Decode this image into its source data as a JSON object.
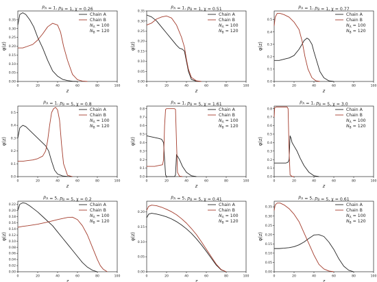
{
  "figure": {
    "background": "#ffffff"
  },
  "chart_data": [
    {
      "type": "line",
      "title": "p_A = 1,   p_B = 1,   χ = 0.26",
      "xlabel": "z",
      "ylabel": "φ(z)",
      "xlim": [
        0,
        100
      ],
      "ylim": [
        0,
        0.4
      ],
      "xticks": [
        0,
        20,
        40,
        60,
        80,
        100
      ],
      "yticks": [
        0.0,
        0.05,
        0.1,
        0.15,
        0.2,
        0.25,
        0.3,
        0.35
      ],
      "ytick_labels": [
        "0.00",
        "0.05",
        "0.10",
        "0.15",
        "0.20",
        "0.25",
        "0.30",
        "0.35"
      ],
      "legend": {
        "placement": "top-right",
        "extra": [
          "N_A = 100",
          "N_B = 120"
        ]
      },
      "series": [
        {
          "name": "Chain A",
          "color": "#222222",
          "x": [
            0,
            2,
            5,
            8,
            12,
            16,
            20,
            25,
            30,
            35,
            40,
            45,
            50,
            55,
            60
          ],
          "y": [
            0.32,
            0.38,
            0.39,
            0.38,
            0.35,
            0.31,
            0.25,
            0.19,
            0.12,
            0.06,
            0.03,
            0.012,
            0.005,
            0.001,
            0
          ]
        },
        {
          "name": "Chain B",
          "color": "#a33a2a",
          "x": [
            0,
            5,
            10,
            15,
            20,
            25,
            30,
            35,
            40,
            43,
            46,
            50,
            55,
            60,
            65,
            70
          ],
          "y": [
            0.19,
            0.19,
            0.2,
            0.21,
            0.235,
            0.27,
            0.31,
            0.33,
            0.32,
            0.28,
            0.2,
            0.12,
            0.04,
            0.01,
            0.002,
            0
          ]
        }
      ]
    },
    {
      "type": "line",
      "title": "p_A = 1,   p_B = 1,   χ = 0.51",
      "xlabel": "z",
      "ylabel": "φ(z)",
      "xlim": [
        0,
        100
      ],
      "ylim": [
        0,
        0.35
      ],
      "xticks": [
        0,
        20,
        40,
        60,
        80,
        100
      ],
      "yticks": [
        0.0,
        0.05,
        0.1,
        0.15,
        0.2,
        0.25,
        0.3,
        0.35
      ],
      "ytick_labels": [
        "0.00",
        "0.05",
        "0.10",
        "0.15",
        "0.20",
        "0.25",
        "0.30",
        "0.35"
      ],
      "legend": {
        "placement": "top-right",
        "extra": [
          "N_A = 100",
          "N_B = 120"
        ]
      },
      "series": [
        {
          "name": "Chain A",
          "color": "#222222",
          "x": [
            0,
            5,
            10,
            15,
            20,
            25,
            30,
            33,
            36,
            38,
            40,
            42,
            45,
            50,
            55
          ],
          "y": [
            0.33,
            0.32,
            0.3,
            0.27,
            0.24,
            0.21,
            0.18,
            0.165,
            0.16,
            0.15,
            0.1,
            0.05,
            0.01,
            0.001,
            0
          ]
        },
        {
          "name": "Chain B",
          "color": "#a33a2a",
          "x": [
            0,
            5,
            10,
            15,
            20,
            25,
            30,
            35,
            38,
            40,
            42,
            45,
            50,
            55
          ],
          "y": [
            0.28,
            0.29,
            0.31,
            0.32,
            0.325,
            0.315,
            0.28,
            0.22,
            0.17,
            0.11,
            0.06,
            0.02,
            0.003,
            0
          ]
        }
      ]
    },
    {
      "type": "line",
      "title": "p_A = 1,   p_B = 1,   χ = 0.77",
      "xlabel": "z",
      "ylabel": "φ(z)",
      "xlim": [
        0,
        100
      ],
      "ylim": [
        0,
        0.57
      ],
      "xticks": [
        0,
        20,
        40,
        60,
        80,
        100
      ],
      "yticks": [
        0.0,
        0.1,
        0.2,
        0.3,
        0.4,
        0.5
      ],
      "ytick_labels": [
        "0.0",
        "0.1",
        "0.2",
        "0.3",
        "0.4",
        "0.5"
      ],
      "legend": {
        "placement": "top-right",
        "extra": [
          "N_A = 100",
          "N_B = 120"
        ]
      },
      "series": [
        {
          "name": "Chain A",
          "color": "#222222",
          "x": [
            0,
            5,
            10,
            15,
            20,
            25,
            28,
            30,
            33,
            35,
            38,
            40,
            43,
            46,
            50,
            55,
            60
          ],
          "y": [
            0.17,
            0.17,
            0.18,
            0.19,
            0.21,
            0.26,
            0.3,
            0.33,
            0.35,
            0.34,
            0.3,
            0.24,
            0.16,
            0.08,
            0.03,
            0.005,
            0
          ]
        },
        {
          "name": "Chain B",
          "color": "#a33a2a",
          "x": [
            0,
            1,
            3,
            6,
            10,
            15,
            20,
            25,
            28,
            31,
            34,
            38,
            42,
            46
          ],
          "y": [
            0.45,
            0.52,
            0.55,
            0.55,
            0.54,
            0.52,
            0.48,
            0.42,
            0.33,
            0.2,
            0.1,
            0.03,
            0.005,
            0
          ]
        }
      ]
    },
    {
      "type": "line",
      "title": "p_A = 1,   p_B = 5,   χ = 0.8",
      "xlabel": "z",
      "ylabel": "φ(z)",
      "xlim": [
        0,
        100
      ],
      "ylim": [
        0,
        0.55
      ],
      "xticks": [
        0,
        20,
        40,
        60,
        80,
        100
      ],
      "yticks": [
        0.0,
        0.1,
        0.2,
        0.3,
        0.4,
        0.5
      ],
      "ytick_labels": [
        "0.0",
        "0.1",
        "0.2",
        "0.3",
        "0.4",
        "0.5"
      ],
      "legend": {
        "placement": "top-right",
        "extra": [
          "N_A = 100",
          "N_B = 120"
        ]
      },
      "series": [
        {
          "name": "Chain A",
          "color": "#222222",
          "x": [
            0,
            2,
            5,
            8,
            12,
            16,
            20,
            24,
            28,
            31,
            34,
            37,
            40,
            45,
            50,
            55
          ],
          "y": [
            0.3,
            0.38,
            0.4,
            0.39,
            0.36,
            0.33,
            0.3,
            0.27,
            0.24,
            0.2,
            0.12,
            0.05,
            0.02,
            0.005,
            0.001,
            0
          ]
        },
        {
          "name": "Chain B",
          "color": "#a33a2a",
          "x": [
            0,
            5,
            10,
            15,
            20,
            25,
            28,
            30,
            32,
            34,
            36,
            38,
            40,
            42,
            44,
            46,
            50,
            55
          ],
          "y": [
            0.12,
            0.12,
            0.125,
            0.13,
            0.14,
            0.16,
            0.2,
            0.28,
            0.4,
            0.5,
            0.53,
            0.54,
            0.52,
            0.44,
            0.25,
            0.1,
            0.01,
            0
          ]
        }
      ]
    },
    {
      "type": "line",
      "title": "p_A = 1,   p_B = 5,   χ = 1.61",
      "xlabel": "z",
      "ylabel": "φ(z)",
      "xlim": [
        0,
        100
      ],
      "ylim": [
        0,
        0.83
      ],
      "xticks": [
        0,
        20,
        40,
        60,
        80,
        100
      ],
      "yticks": [
        0.0,
        0.1,
        0.2,
        0.3,
        0.4,
        0.5,
        0.6,
        0.7,
        0.8
      ],
      "ytick_labels": [
        "0.0",
        "0.1",
        "0.2",
        "0.3",
        "0.4",
        "0.5",
        "0.6",
        "0.7",
        "0.8"
      ],
      "legend": {
        "placement": "top-right",
        "extra": [
          "N_A = 100",
          "N_B = 120"
        ]
      },
      "series": [
        {
          "name": "Chain A",
          "color": "#222222",
          "x": [
            0,
            4,
            8,
            12,
            15,
            17,
            18,
            19,
            20,
            28,
            29,
            30,
            31,
            33,
            36,
            40,
            45,
            50
          ],
          "y": [
            0.48,
            0.47,
            0.46,
            0.45,
            0.44,
            0.4,
            0.2,
            0.02,
            0.0,
            0.0,
            0.02,
            0.26,
            0.24,
            0.2,
            0.12,
            0.05,
            0.01,
            0
          ]
        },
        {
          "name": "Chain B",
          "color": "#a33a2a",
          "x": [
            0,
            4,
            8,
            12,
            16,
            17,
            18,
            19,
            20,
            28,
            29,
            30,
            31,
            33,
            36
          ],
          "y": [
            0.12,
            0.12,
            0.12,
            0.13,
            0.14,
            0.2,
            0.6,
            0.79,
            0.8,
            0.8,
            0.79,
            0.4,
            0.05,
            0.005,
            0
          ]
        }
      ]
    },
    {
      "type": "line",
      "title": "p_A = 1,   p_B = 5,   χ = 3.0",
      "xlabel": "z",
      "ylabel": "φ(z)",
      "xlim": [
        0,
        100
      ],
      "ylim": [
        0,
        0.83
      ],
      "xticks": [
        0,
        20,
        40,
        60,
        80,
        100
      ],
      "yticks": [
        0.0,
        0.1,
        0.2,
        0.3,
        0.4,
        0.5,
        0.6,
        0.7,
        0.8
      ],
      "ytick_labels": [
        "0.0",
        "0.1",
        "0.2",
        "0.3",
        "0.4",
        "0.5",
        "0.6",
        "0.7",
        "0.8"
      ],
      "legend": {
        "placement": "top-right",
        "extra": [
          "N_A = 100",
          "N_B = 120"
        ]
      },
      "series": [
        {
          "name": "Chain A",
          "color": "#222222",
          "x": [
            0,
            4,
            8,
            12,
            14,
            15,
            16,
            17,
            18,
            20,
            23,
            26,
            30,
            35,
            40,
            45
          ],
          "y": [
            0.16,
            0.16,
            0.16,
            0.16,
            0.17,
            0.2,
            0.48,
            0.45,
            0.4,
            0.36,
            0.3,
            0.22,
            0.13,
            0.05,
            0.01,
            0
          ]
        },
        {
          "name": "Chain B",
          "color": "#a33a2a",
          "x": [
            0,
            0.5,
            2,
            6,
            10,
            13,
            14,
            15,
            16,
            18,
            20
          ],
          "y": [
            0.7,
            0.81,
            0.82,
            0.82,
            0.82,
            0.82,
            0.8,
            0.3,
            0.02,
            0.002,
            0
          ]
        }
      ]
    },
    {
      "type": "line",
      "title": "p_A = 5,   p_B = 5,   χ = 0.2",
      "xlabel": "z",
      "ylabel": "φ(z)",
      "xlim": [
        0,
        100
      ],
      "ylim": [
        0,
        0.23
      ],
      "xticks": [
        0,
        20,
        40,
        60,
        80,
        100
      ],
      "yticks": [
        0.0,
        0.02,
        0.04,
        0.06,
        0.08,
        0.1,
        0.12,
        0.14,
        0.16,
        0.18,
        0.2,
        0.22
      ],
      "ytick_labels": [
        "0.00",
        "0.02",
        "0.04",
        "0.06",
        "0.08",
        "0.10",
        "0.12",
        "0.14",
        "0.16",
        "0.18",
        "0.20",
        "0.22"
      ],
      "legend": {
        "placement": "top-right",
        "extra": [
          "N_A = 100",
          "N_B = 120"
        ]
      },
      "series": [
        {
          "name": "Chain A",
          "color": "#222222",
          "x": [
            0,
            2,
            5,
            8,
            12,
            16,
            20,
            25,
            30,
            35,
            40,
            45,
            50,
            55,
            60,
            65,
            70,
            75,
            80
          ],
          "y": [
            0.2,
            0.22,
            0.225,
            0.223,
            0.215,
            0.205,
            0.195,
            0.18,
            0.165,
            0.15,
            0.13,
            0.11,
            0.09,
            0.07,
            0.05,
            0.03,
            0.015,
            0.005,
            0
          ]
        },
        {
          "name": "Chain B",
          "color": "#a33a2a",
          "x": [
            0,
            5,
            10,
            20,
            30,
            40,
            50,
            55,
            60,
            65,
            70,
            75,
            80,
            83,
            86,
            90
          ],
          "y": [
            0.145,
            0.148,
            0.15,
            0.155,
            0.162,
            0.17,
            0.177,
            0.178,
            0.17,
            0.15,
            0.12,
            0.08,
            0.04,
            0.02,
            0.008,
            0
          ]
        }
      ]
    },
    {
      "type": "line",
      "title": "p_A = 5,   p_B = 5,   χ = 0.41",
      "xlabel": "z",
      "ylabel": "φ(z)",
      "xlim": [
        0,
        100
      ],
      "ylim": [
        0,
        0.235
      ],
      "xticks": [
        0,
        20,
        40,
        60,
        80,
        100
      ],
      "yticks": [
        0.0,
        0.05,
        0.1,
        0.15,
        0.2
      ],
      "ytick_labels": [
        "0.00",
        "0.05",
        "0.10",
        "0.15",
        "0.20"
      ],
      "legend": {
        "placement": "top-right",
        "extra": [
          "N_A = 100",
          "N_B = 120"
        ]
      },
      "series": [
        {
          "name": "Chain A",
          "color": "#222222",
          "x": [
            0,
            2,
            5,
            10,
            15,
            20,
            25,
            30,
            35,
            40,
            45,
            50,
            55,
            60,
            65,
            70,
            75,
            80
          ],
          "y": [
            0.18,
            0.192,
            0.195,
            0.192,
            0.188,
            0.183,
            0.176,
            0.167,
            0.156,
            0.143,
            0.128,
            0.11,
            0.09,
            0.068,
            0.045,
            0.022,
            0.006,
            0
          ]
        },
        {
          "name": "Chain B",
          "color": "#a33a2a",
          "x": [
            0,
            2,
            5,
            10,
            15,
            20,
            25,
            30,
            35,
            40,
            45,
            50,
            55,
            60,
            65,
            70,
            75,
            80
          ],
          "y": [
            0.205,
            0.218,
            0.222,
            0.22,
            0.215,
            0.208,
            0.2,
            0.19,
            0.177,
            0.162,
            0.144,
            0.124,
            0.1,
            0.075,
            0.05,
            0.025,
            0.007,
            0
          ]
        }
      ]
    },
    {
      "type": "line",
      "title": "p_A = 5,   p_B = 5,   χ = 0.61",
      "xlabel": "z",
      "ylabel": "φ(z)",
      "xlim": [
        0,
        100
      ],
      "ylim": [
        0,
        0.38
      ],
      "xticks": [
        0,
        20,
        40,
        60,
        80,
        100
      ],
      "yticks": [
        0.0,
        0.05,
        0.1,
        0.15,
        0.2,
        0.25,
        0.3,
        0.35
      ],
      "ytick_labels": [
        "0.00",
        "0.05",
        "0.10",
        "0.15",
        "0.20",
        "0.25",
        "0.30",
        "0.35"
      ],
      "legend": {
        "placement": "top-right",
        "extra": [
          "N_A = 100",
          "N_B = 120"
        ]
      },
      "series": [
        {
          "name": "Chain A",
          "color": "#222222",
          "x": [
            0,
            5,
            10,
            15,
            20,
            25,
            30,
            35,
            40,
            45,
            50,
            55,
            60,
            65,
            70,
            75,
            80
          ],
          "y": [
            0.125,
            0.125,
            0.127,
            0.13,
            0.135,
            0.145,
            0.16,
            0.18,
            0.198,
            0.2,
            0.19,
            0.16,
            0.12,
            0.07,
            0.03,
            0.008,
            0
          ]
        },
        {
          "name": "Chain B",
          "color": "#a33a2a",
          "x": [
            0,
            1,
            3,
            6,
            10,
            15,
            20,
            25,
            30,
            35,
            40,
            45,
            50,
            55,
            60
          ],
          "y": [
            0.33,
            0.36,
            0.37,
            0.37,
            0.36,
            0.34,
            0.31,
            0.27,
            0.21,
            0.15,
            0.09,
            0.04,
            0.015,
            0.004,
            0
          ]
        }
      ]
    }
  ]
}
